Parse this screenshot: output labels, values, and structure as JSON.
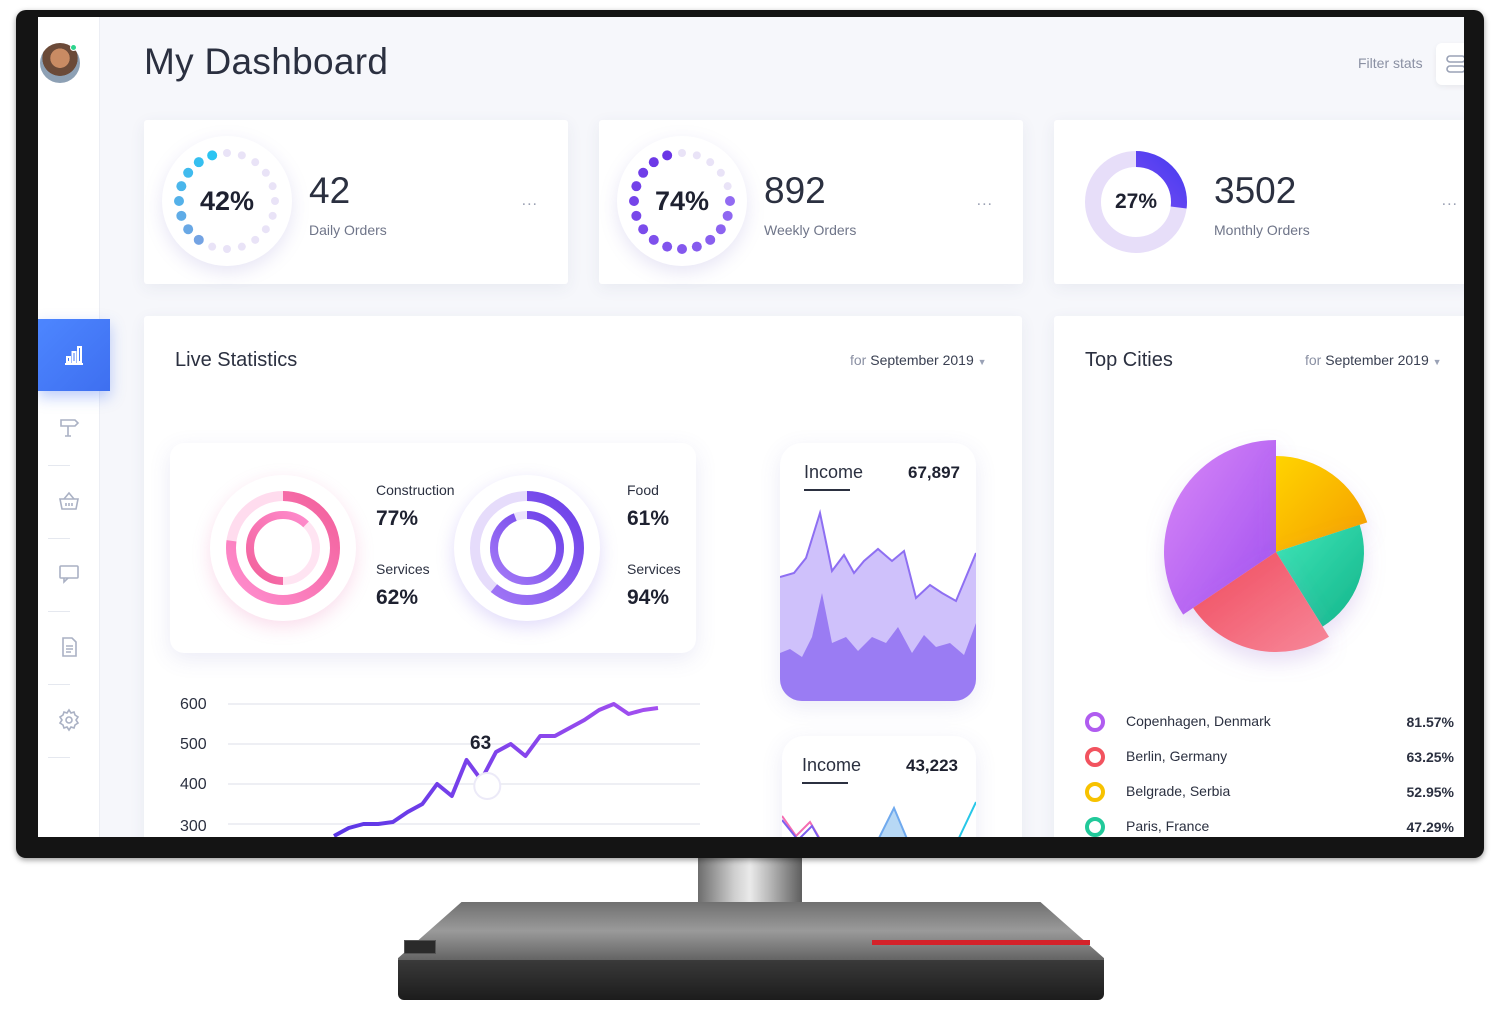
{
  "header": {
    "title": "My Dashboard",
    "filter_label": "Filter stats"
  },
  "stats": [
    {
      "percent": "42%",
      "value": "42",
      "label": "Daily Orders",
      "more": "..."
    },
    {
      "percent": "74%",
      "value": "892",
      "label": "Weekly Orders",
      "more": "..."
    },
    {
      "percent": "27%",
      "value": "3502",
      "label": "Monthly Orders",
      "more": "..."
    }
  ],
  "live_stats": {
    "title": "Live Statistics",
    "filter_prefix": "for",
    "filter_value": "September 2019",
    "donuts": [
      {
        "label_a": "Construction",
        "value_a": "77%",
        "label_b": "Services",
        "value_b": "62%"
      },
      {
        "label_a": "Food",
        "value_a": "61%",
        "label_b": "Services",
        "value_b": "94%"
      }
    ],
    "incomes": [
      {
        "title": "Income",
        "value": "67,897"
      },
      {
        "title": "Income",
        "value": "43,223"
      }
    ],
    "line_chart": {
      "peak_label": "63"
    }
  },
  "top_cities": {
    "title": "Top Cities",
    "filter_prefix": "for",
    "filter_value": "September 2019",
    "cities": [
      {
        "name": "Copenhagen, Denmark",
        "pct": "81.57%",
        "color": "#b05cf0"
      },
      {
        "name": "Berlin, Germany",
        "pct": "63.25%",
        "color": "#f2535f"
      },
      {
        "name": "Belgrade, Serbia",
        "pct": "52.95%",
        "color": "#f7c200"
      },
      {
        "name": "Paris, France",
        "pct": "47.29%",
        "color": "#21c99a"
      }
    ]
  },
  "chart_data": [
    {
      "type": "line",
      "y_ticks": [
        "600",
        "500",
        "400",
        "300"
      ],
      "ylim": [
        300,
        600
      ],
      "annotation": "63",
      "series": [
        {
          "values": [
            270,
            290,
            300,
            300,
            305,
            330,
            350,
            400,
            370,
            460,
            410,
            480,
            500,
            470,
            520,
            520,
            540,
            560,
            585,
            600,
            575,
            585,
            590
          ]
        }
      ]
    },
    {
      "type": "pie",
      "labels": [
        "Copenhagen, Denmark",
        "Berlin, Germany",
        "Belgrade, Serbia",
        "Paris, France"
      ],
      "values": [
        81.57,
        63.25,
        52.95,
        47.29
      ]
    }
  ],
  "sidebar": {
    "items": [
      {
        "icon": "bar-chart-icon",
        "active": true
      },
      {
        "icon": "signpost-icon",
        "active": false
      },
      {
        "icon": "basket-icon",
        "active": false
      },
      {
        "icon": "chat-icon",
        "active": false
      },
      {
        "icon": "document-icon",
        "active": false
      },
      {
        "icon": "gear-icon",
        "active": false
      }
    ]
  }
}
